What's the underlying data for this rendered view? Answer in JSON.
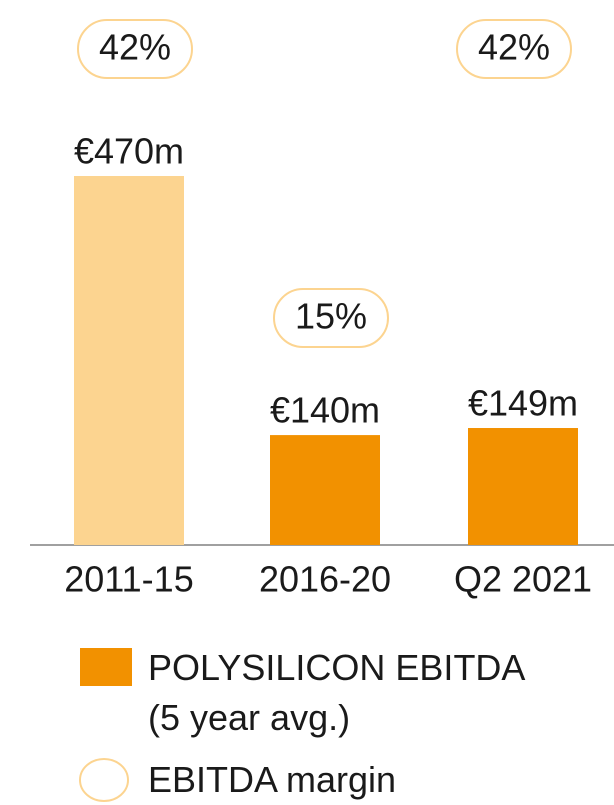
{
  "chart_data": {
    "type": "bar",
    "categories": [
      "2011-15",
      "2016-20",
      "Q2 2021"
    ],
    "series": [
      {
        "name": "POLYSILICON EBITDA (5 year avg.)",
        "color": "#f29100",
        "colors": [
          "#fcd490",
          "#f29100",
          "#f29100"
        ],
        "values": [
          470,
          140,
          149
        ],
        "value_labels": [
          "€470m",
          "€140m",
          "€149m"
        ]
      },
      {
        "name": "EBITDA margin",
        "type": "badge",
        "color": "#fcd490",
        "values": [
          42,
          15,
          42
        ],
        "value_labels": [
          "42%",
          "15%",
          "42%"
        ]
      }
    ]
  }
}
